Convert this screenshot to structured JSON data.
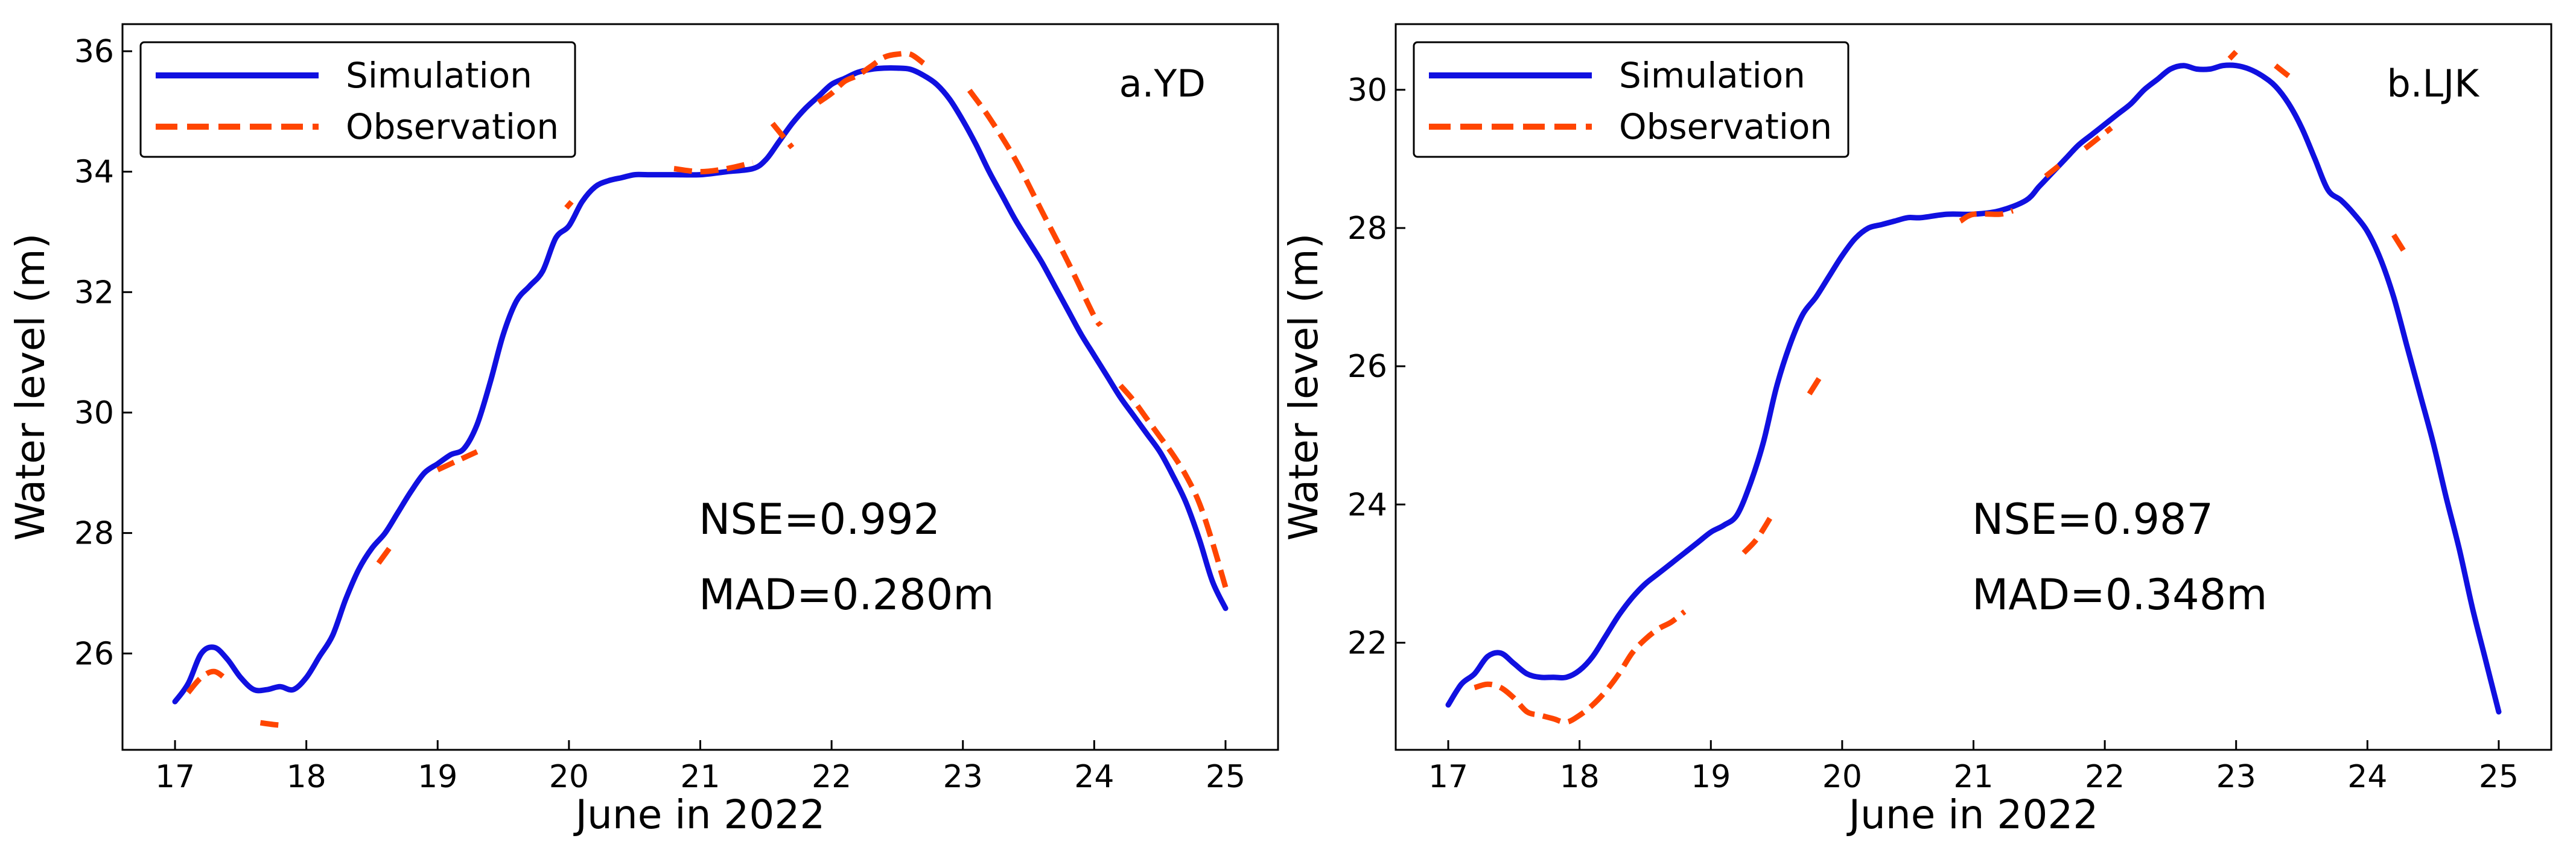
{
  "figure": {
    "x_axis_label": "June in 2022",
    "y_axis_label": "Water level (m)"
  },
  "chart_data": [
    {
      "type": "line",
      "panel_label": "a.YD",
      "xlabel": "June in 2022",
      "ylabel": "Water level (m)",
      "xlim": [
        16.6,
        25.4
      ],
      "ylim": [
        24.4,
        36.45
      ],
      "xticks": [
        17,
        18,
        19,
        20,
        21,
        22,
        23,
        24,
        25
      ],
      "yticks": [
        26,
        28,
        30,
        32,
        34,
        36
      ],
      "legend_position": "top-left",
      "stats": {
        "nse": "NSE=0.992",
        "mad": "MAD=0.280m"
      },
      "series": [
        {
          "name": "Simulation",
          "style": "solid",
          "color": "#1010e0",
          "x": [
            17.0,
            17.1,
            17.2,
            17.3,
            17.4,
            17.5,
            17.6,
            17.7,
            17.8,
            17.9,
            18.0,
            18.1,
            18.2,
            18.3,
            18.4,
            18.5,
            18.6,
            18.7,
            18.8,
            18.9,
            19.0,
            19.1,
            19.2,
            19.3,
            19.4,
            19.5,
            19.6,
            19.7,
            19.8,
            19.9,
            20.0,
            20.1,
            20.2,
            20.3,
            20.4,
            20.5,
            20.6,
            20.8,
            21.0,
            21.2,
            21.4,
            21.5,
            21.6,
            21.7,
            21.8,
            21.9,
            22.0,
            22.1,
            22.2,
            22.3,
            22.4,
            22.5,
            22.6,
            22.7,
            22.8,
            22.9,
            23.0,
            23.1,
            23.2,
            23.3,
            23.4,
            23.5,
            23.6,
            23.7,
            23.8,
            23.9,
            24.0,
            24.1,
            24.2,
            24.3,
            24.4,
            24.5,
            24.6,
            24.7,
            24.8,
            24.9,
            25.0
          ],
          "values": [
            25.2,
            25.5,
            26.0,
            26.1,
            25.9,
            25.6,
            25.4,
            25.4,
            25.45,
            25.4,
            25.6,
            25.95,
            26.3,
            26.9,
            27.4,
            27.75,
            28.0,
            28.35,
            28.7,
            29.0,
            29.15,
            29.3,
            29.4,
            29.8,
            30.5,
            31.3,
            31.85,
            32.1,
            32.35,
            32.9,
            33.1,
            33.5,
            33.75,
            33.85,
            33.9,
            33.95,
            33.95,
            33.95,
            33.95,
            34.0,
            34.05,
            34.2,
            34.5,
            34.8,
            35.05,
            35.25,
            35.45,
            35.55,
            35.65,
            35.7,
            35.72,
            35.72,
            35.7,
            35.6,
            35.45,
            35.2,
            34.85,
            34.45,
            34.0,
            33.6,
            33.2,
            32.85,
            32.5,
            32.1,
            31.7,
            31.3,
            30.95,
            30.6,
            30.25,
            29.95,
            29.65,
            29.35,
            28.95,
            28.5,
            27.9,
            27.2,
            26.75
          ]
        },
        {
          "name": "Observation",
          "style": "dashed",
          "color": "#ff4500",
          "segments": [
            {
              "x": [
                17.1,
                17.2,
                17.3,
                17.4
              ],
              "values": [
                25.35,
                25.6,
                25.7,
                25.55
              ]
            },
            {
              "x": [
                17.65,
                17.75,
                17.85
              ],
              "values": [
                24.85,
                24.82,
                24.8
              ]
            },
            {
              "x": [
                18.55,
                18.65
              ],
              "values": [
                27.5,
                27.8
              ]
            },
            {
              "x": [
                19.0,
                19.1,
                19.3
              ],
              "values": [
                29.05,
                29.15,
                29.35
              ]
            },
            {
              "x": [
                19.98,
                20.02
              ],
              "values": [
                33.4,
                33.5
              ]
            },
            {
              "x": [
                20.8,
                21.0,
                21.2,
                21.4
              ],
              "values": [
                34.05,
                34.0,
                34.05,
                34.15
              ]
            },
            {
              "x": [
                21.55,
                21.7
              ],
              "values": [
                34.8,
                34.4
              ]
            },
            {
              "x": [
                21.9,
                22.0,
                22.1,
                22.2,
                22.3,
                22.4,
                22.5,
                22.6,
                22.7
              ],
              "values": [
                35.15,
                35.3,
                35.5,
                35.6,
                35.75,
                35.9,
                35.95,
                35.95,
                35.8
              ]
            },
            {
              "x": [
                23.05,
                23.2,
                23.4,
                23.6,
                23.8,
                24.0,
                24.05
              ],
              "values": [
                35.35,
                34.9,
                34.2,
                33.35,
                32.5,
                31.6,
                31.45
              ]
            },
            {
              "x": [
                24.2,
                24.3,
                24.4,
                24.5,
                24.6,
                24.7,
                24.8,
                24.9,
                25.0
              ],
              "values": [
                30.45,
                30.2,
                29.9,
                29.6,
                29.3,
                28.95,
                28.5,
                27.85,
                27.1
              ]
            }
          ]
        }
      ]
    },
    {
      "type": "line",
      "panel_label": "b.LJK",
      "xlabel": "June in 2022",
      "ylabel": "Water level (m)",
      "xlim": [
        16.6,
        25.4
      ],
      "ylim": [
        20.45,
        30.95
      ],
      "xticks": [
        17,
        18,
        19,
        20,
        21,
        22,
        23,
        24,
        25
      ],
      "yticks": [
        22,
        24,
        26,
        28,
        30
      ],
      "legend_position": "top-left",
      "stats": {
        "nse": "NSE=0.987",
        "mad": "MAD=0.348m"
      },
      "series": [
        {
          "name": "Simulation",
          "style": "solid",
          "color": "#1010e0",
          "x": [
            17.0,
            17.1,
            17.2,
            17.3,
            17.4,
            17.5,
            17.6,
            17.7,
            17.8,
            17.9,
            18.0,
            18.1,
            18.2,
            18.3,
            18.4,
            18.5,
            18.6,
            18.7,
            18.8,
            18.9,
            19.0,
            19.1,
            19.2,
            19.3,
            19.4,
            19.5,
            19.6,
            19.7,
            19.8,
            19.9,
            20.0,
            20.1,
            20.2,
            20.3,
            20.4,
            20.5,
            20.6,
            20.8,
            21.0,
            21.2,
            21.4,
            21.5,
            21.6,
            21.7,
            21.8,
            21.9,
            22.0,
            22.1,
            22.2,
            22.3,
            22.4,
            22.5,
            22.6,
            22.7,
            22.8,
            22.9,
            23.0,
            23.1,
            23.2,
            23.3,
            23.4,
            23.5,
            23.6,
            23.7,
            23.8,
            23.9,
            24.0,
            24.1,
            24.2,
            24.3,
            24.4,
            24.5,
            24.6,
            24.7,
            24.8,
            24.9,
            25.0
          ],
          "values": [
            21.1,
            21.4,
            21.55,
            21.8,
            21.85,
            21.7,
            21.55,
            21.5,
            21.5,
            21.5,
            21.6,
            21.8,
            22.1,
            22.4,
            22.65,
            22.85,
            23.0,
            23.15,
            23.3,
            23.45,
            23.6,
            23.7,
            23.85,
            24.3,
            24.9,
            25.7,
            26.3,
            26.75,
            27.0,
            27.3,
            27.6,
            27.85,
            28.0,
            28.05,
            28.1,
            28.15,
            28.15,
            28.2,
            28.2,
            28.25,
            28.4,
            28.6,
            28.8,
            29.0,
            29.2,
            29.35,
            29.5,
            29.65,
            29.8,
            30.0,
            30.15,
            30.3,
            30.35,
            30.3,
            30.3,
            30.35,
            30.35,
            30.3,
            30.2,
            30.05,
            29.8,
            29.45,
            29.0,
            28.55,
            28.4,
            28.2,
            27.95,
            27.55,
            27.0,
            26.3,
            25.6,
            24.9,
            24.1,
            23.35,
            22.5,
            21.75,
            21.0
          ]
        },
        {
          "name": "Observation",
          "style": "dashed",
          "color": "#ff4500",
          "segments": [
            {
              "x": [
                17.2,
                17.3,
                17.4,
                17.5,
                17.6,
                17.7,
                17.8,
                17.9,
                18.0,
                18.1,
                18.2,
                18.3,
                18.4,
                18.5,
                18.6,
                18.7,
                18.8
              ],
              "values": [
                21.35,
                21.4,
                21.35,
                21.2,
                21.0,
                20.95,
                20.9,
                20.85,
                20.95,
                21.1,
                21.3,
                21.55,
                21.85,
                22.05,
                22.2,
                22.3,
                22.45
              ]
            },
            {
              "x": [
                19.25,
                19.35,
                19.45
              ],
              "values": [
                23.3,
                23.5,
                23.8
              ]
            },
            {
              "x": [
                19.75,
                19.85
              ],
              "values": [
                25.6,
                25.9
              ]
            },
            {
              "x": [
                20.9,
                21.0,
                21.2,
                21.3
              ],
              "values": [
                28.1,
                28.2,
                28.2,
                28.25
              ]
            },
            {
              "x": [
                21.55,
                21.65
              ],
              "values": [
                28.75,
                28.9
              ]
            },
            {
              "x": [
                21.85,
                21.95,
                22.05
              ],
              "values": [
                29.15,
                29.3,
                29.45
              ]
            },
            {
              "x": [
                22.95,
                23.0
              ],
              "values": [
                30.45,
                30.55
              ]
            },
            {
              "x": [
                23.3,
                23.4
              ],
              "values": [
                30.35,
                30.2
              ]
            },
            {
              "x": [
                24.2,
                24.3
              ],
              "values": [
                27.9,
                27.6
              ]
            }
          ]
        }
      ]
    }
  ]
}
